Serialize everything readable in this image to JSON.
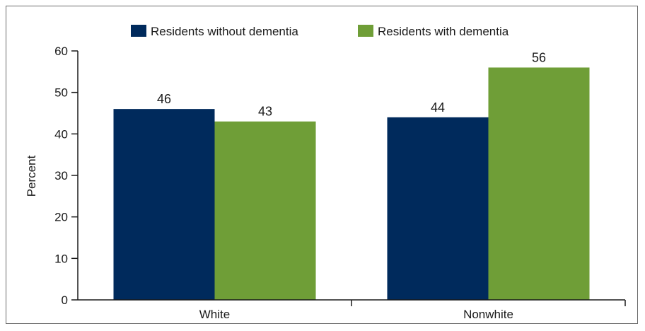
{
  "chart_data": {
    "type": "bar",
    "title": "",
    "xlabel": "",
    "ylabel": "Percent",
    "categories": [
      "White",
      "Nonwhite"
    ],
    "series": [
      {
        "name": "Residents without dementia",
        "values": [
          46,
          44
        ],
        "color": "#002a5c"
      },
      {
        "name": "Residents with dementia",
        "values": [
          43,
          56
        ],
        "color": "#6f9e37"
      }
    ],
    "ylim": [
      0,
      60
    ],
    "yticks": [
      0,
      10,
      20,
      30,
      40,
      50,
      60
    ],
    "grid": false,
    "legend_position": "top-center",
    "data_labels": true
  }
}
